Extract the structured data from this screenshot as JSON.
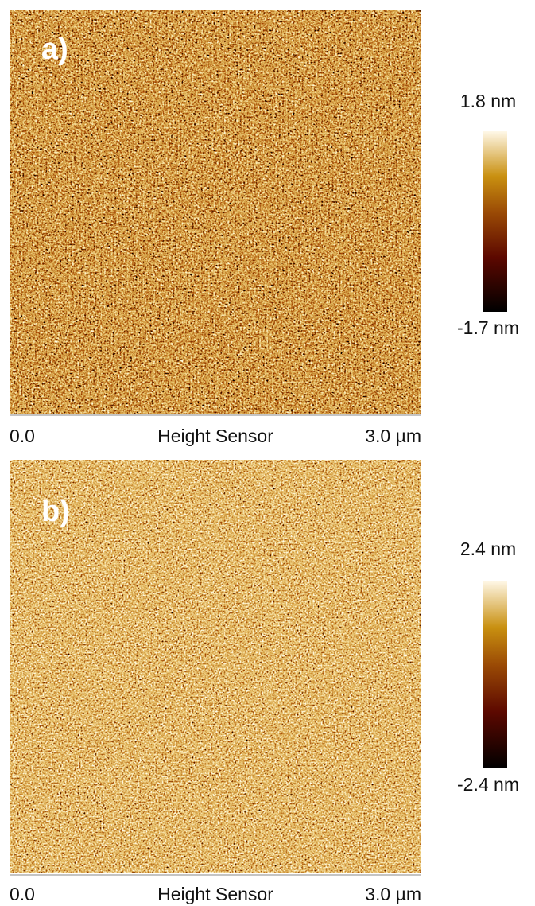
{
  "panels": [
    {
      "label": "a)",
      "scale_max": "1.8 nm",
      "scale_min": "-1.7 nm",
      "axis_start": "0.0",
      "axis_title": "Height Sensor",
      "axis_end": "3.0 µm"
    },
    {
      "label": "b)",
      "scale_max": "2.4 nm",
      "scale_min": "-2.4 nm",
      "axis_start": "0.0",
      "axis_title": "Height Sensor",
      "axis_end": "3.0 µm"
    }
  ]
}
